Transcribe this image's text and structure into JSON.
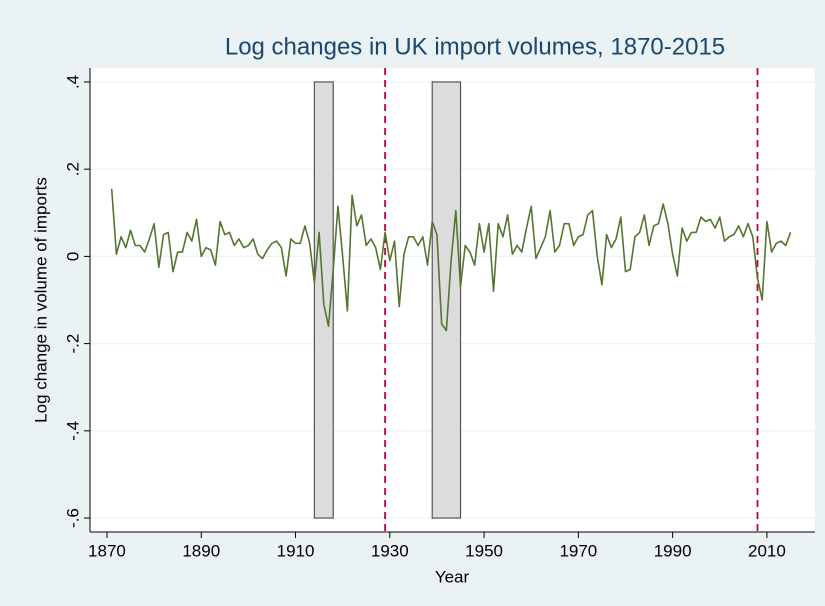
{
  "chart_data": {
    "type": "line",
    "title": "Log changes in UK import volumes, 1870-2015",
    "x_label": "Year",
    "y_label": "Log change in volume of imports",
    "color": "#55762f",
    "x": [
      1871,
      1872,
      1873,
      1874,
      1875,
      1876,
      1877,
      1878,
      1879,
      1880,
      1881,
      1882,
      1883,
      1884,
      1885,
      1886,
      1887,
      1888,
      1889,
      1890,
      1891,
      1892,
      1893,
      1894,
      1895,
      1896,
      1897,
      1898,
      1899,
      1900,
      1901,
      1902,
      1903,
      1904,
      1905,
      1906,
      1907,
      1908,
      1909,
      1910,
      1911,
      1912,
      1913,
      1914,
      1915,
      1916,
      1917,
      1918,
      1919,
      1920,
      1921,
      1922,
      1923,
      1924,
      1925,
      1926,
      1927,
      1928,
      1929,
      1930,
      1931,
      1932,
      1933,
      1934,
      1935,
      1936,
      1937,
      1938,
      1939,
      1940,
      1941,
      1942,
      1943,
      1944,
      1945,
      1946,
      1947,
      1948,
      1949,
      1950,
      1951,
      1952,
      1953,
      1954,
      1955,
      1956,
      1957,
      1958,
      1959,
      1960,
      1961,
      1962,
      1963,
      1964,
      1965,
      1966,
      1967,
      1968,
      1969,
      1970,
      1971,
      1972,
      1973,
      1974,
      1975,
      1976,
      1977,
      1978,
      1979,
      1980,
      1981,
      1982,
      1983,
      1984,
      1985,
      1986,
      1987,
      1988,
      1989,
      1990,
      1991,
      1992,
      1993,
      1994,
      1995,
      1996,
      1997,
      1998,
      1999,
      2000,
      2001,
      2002,
      2003,
      2004,
      2005,
      2006,
      2007,
      2008,
      2009,
      2010,
      2011,
      2012,
      2013,
      2014,
      2015
    ],
    "values": [
      0.155,
      0.005,
      0.045,
      0.02,
      0.06,
      0.025,
      0.025,
      0.01,
      0.04,
      0.075,
      -0.025,
      0.05,
      0.055,
      -0.035,
      0.01,
      0.01,
      0.055,
      0.035,
      0.085,
      0.0,
      0.02,
      0.015,
      -0.02,
      0.08,
      0.05,
      0.055,
      0.025,
      0.04,
      0.02,
      0.025,
      0.04,
      0.005,
      -0.005,
      0.015,
      0.03,
      0.035,
      0.02,
      -0.045,
      0.04,
      0.03,
      0.03,
      0.07,
      0.03,
      -0.06,
      0.055,
      -0.11,
      -0.16,
      -0.03,
      0.115,
      0.0,
      -0.125,
      0.14,
      0.07,
      0.095,
      0.025,
      0.04,
      0.02,
      -0.03,
      0.055,
      -0.01,
      0.035,
      -0.115,
      0.005,
      0.045,
      0.045,
      0.025,
      0.045,
      -0.02,
      0.08,
      0.05,
      -0.155,
      -0.17,
      -0.01,
      0.105,
      -0.07,
      0.025,
      0.01,
      -0.02,
      0.075,
      0.01,
      0.075,
      -0.08,
      0.075,
      0.045,
      0.095,
      0.005,
      0.025,
      0.01,
      0.065,
      0.115,
      -0.005,
      0.02,
      0.045,
      0.105,
      0.01,
      0.025,
      0.075,
      0.075,
      0.025,
      0.045,
      0.05,
      0.095,
      0.105,
      0.0,
      -0.065,
      0.05,
      0.02,
      0.04,
      0.09,
      -0.035,
      -0.03,
      0.045,
      0.055,
      0.095,
      0.025,
      0.07,
      0.075,
      0.12,
      0.075,
      0.005,
      -0.045,
      0.065,
      0.035,
      0.055,
      0.055,
      0.09,
      0.08,
      0.085,
      0.065,
      0.09,
      0.035,
      0.045,
      0.05,
      0.07,
      0.045,
      0.075,
      0.045,
      -0.05,
      -0.1,
      0.08,
      0.01,
      0.03,
      0.035,
      0.025,
      0.055
    ],
    "xlim": [
      1866.4,
      2020.2
    ],
    "ylim": [
      -0.632,
      0.432
    ],
    "xticks": [
      1870,
      1890,
      1910,
      1930,
      1950,
      1970,
      1990,
      2010
    ],
    "yticks": [
      {
        "value": 0.4,
        "label": ".4"
      },
      {
        "value": 0.2,
        "label": ".2"
      },
      0,
      {
        "value": -0.2,
        "label": "-.2"
      },
      {
        "value": -0.4,
        "label": "-.4"
      },
      {
        "value": -0.6,
        "label": "-.6"
      }
    ],
    "grid": true,
    "shaded_periods": [
      [
        1914,
        1918
      ],
      [
        1939,
        1945
      ]
    ],
    "shade_range": [
      -0.6,
      0.4
    ],
    "reference_lines": [
      1929,
      2008
    ],
    "reference_color": "#c10534"
  }
}
